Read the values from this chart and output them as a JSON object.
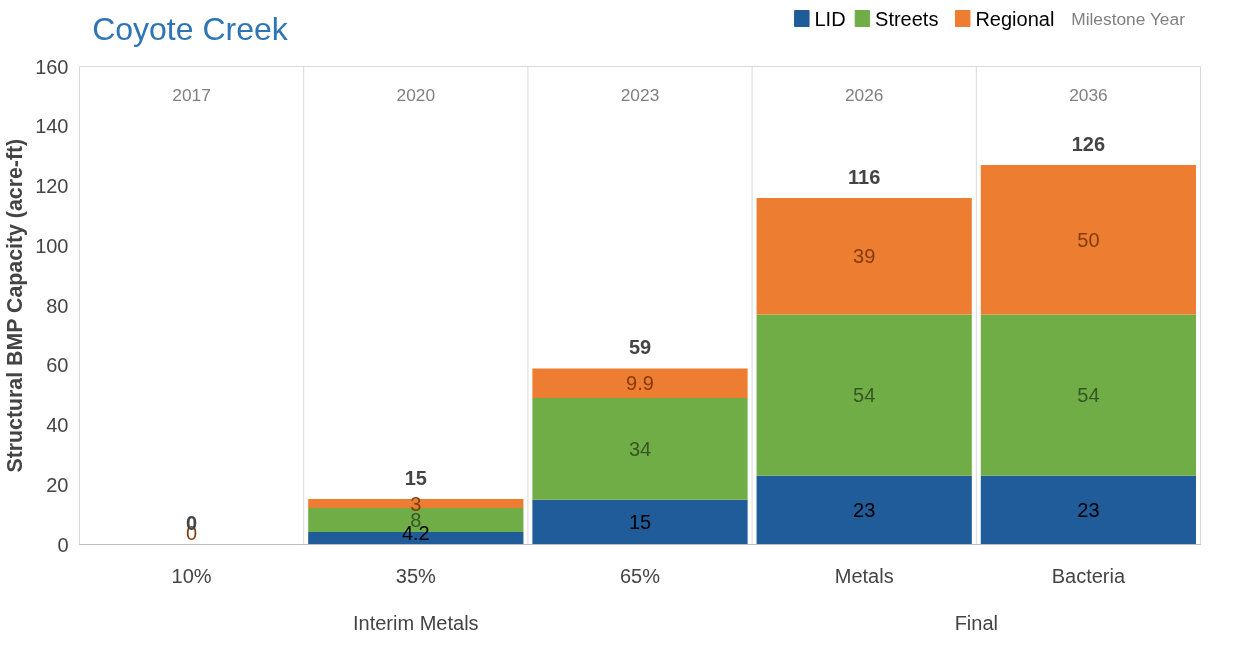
{
  "chart_data": {
    "type": "bar",
    "title": "Coyote Creek",
    "ylabel": "Structural BMP Capacity (acre-ft)",
    "legend_title": "Milestone Year",
    "categories": [
      "10%",
      "35%",
      "65%",
      "Metals",
      "Bacteria"
    ],
    "stacked": true,
    "legend": "top right",
    "ylim": [
      0,
      160
    ],
    "yticks": [
      0,
      20,
      40,
      60,
      80,
      100,
      120,
      140,
      160
    ],
    "series": [
      {
        "name": "LID",
        "color": "#1f5c99",
        "values": [
          0,
          4.2,
          15,
          23,
          23
        ],
        "value_labels": [
          null,
          "4.2",
          "15",
          "23",
          "23"
        ]
      },
      {
        "name": "Streets",
        "color": "#70ad47",
        "values": [
          0,
          8,
          34,
          54,
          54
        ],
        "value_labels": [
          null,
          "8",
          "34",
          "54",
          "54"
        ]
      },
      {
        "name": "Regional",
        "color": "#ed7d31",
        "values": [
          0,
          3,
          9.9,
          39,
          50
        ],
        "value_labels": [
          "0",
          "3",
          "9.9",
          "39",
          "50"
        ]
      }
    ],
    "totals": [
      "0",
      "15",
      "59",
      "116",
      "126"
    ],
    "annotations": [
      "2017",
      "2020",
      "2023",
      "2026",
      "2036",
      "Interim Metals",
      "Final"
    ]
  }
}
